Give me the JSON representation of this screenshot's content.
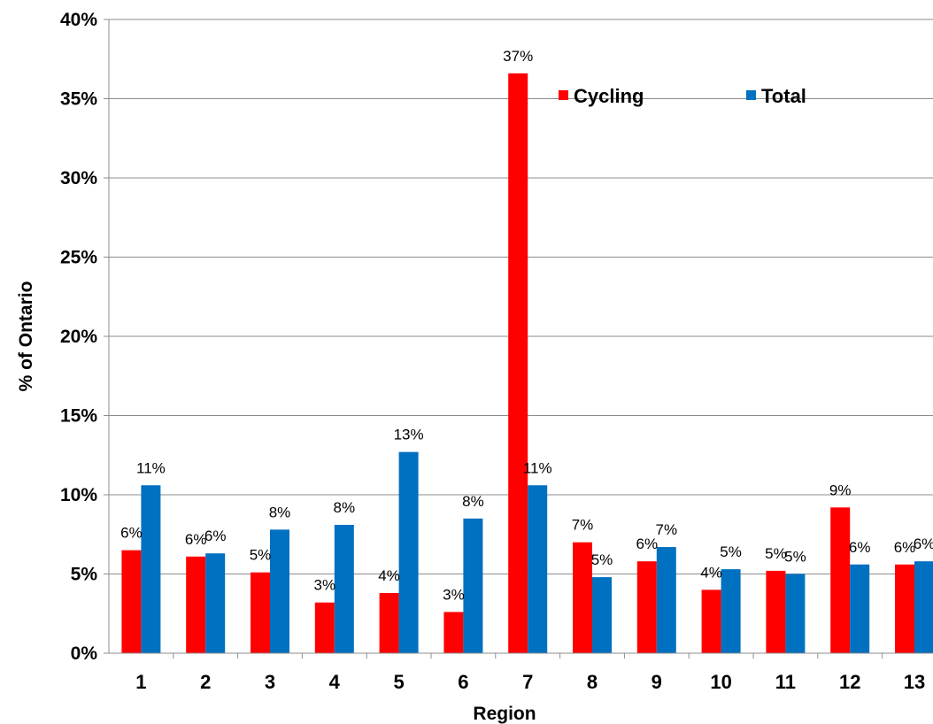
{
  "chart_data": {
    "type": "bar",
    "title": "",
    "xlabel": "Region",
    "ylabel": "% of Ontario",
    "ylim": [
      0,
      40
    ],
    "yticks": [
      0,
      5,
      10,
      15,
      20,
      25,
      30,
      35,
      40
    ],
    "ytick_labels": [
      "0%",
      "5%",
      "10%",
      "15%",
      "20%",
      "25%",
      "30%",
      "35%",
      "40%"
    ],
    "grid": true,
    "legend_position": "top-right",
    "categories": [
      "1",
      "2",
      "3",
      "4",
      "5",
      "6",
      "7",
      "8",
      "9",
      "10",
      "11",
      "12",
      "13"
    ],
    "series": [
      {
        "name": "Cycling",
        "color": "#ff0000",
        "values": [
          6.5,
          6.1,
          5.1,
          3.2,
          3.8,
          2.6,
          36.6,
          7.0,
          5.8,
          4.0,
          5.2,
          9.2,
          5.6
        ],
        "labels": [
          "6%",
          "6%",
          "5%",
          "3%",
          "4%",
          "3%",
          "37%",
          "7%",
          "6%",
          "4%",
          "5%",
          "9%",
          "6%"
        ]
      },
      {
        "name": "Total",
        "color": "#0070c0",
        "values": [
          10.6,
          6.3,
          7.8,
          8.1,
          12.7,
          8.5,
          10.6,
          4.8,
          6.7,
          5.3,
          5.0,
          5.6,
          5.8
        ],
        "labels": [
          "11%",
          "6%",
          "8%",
          "8%",
          "13%",
          "8%",
          "11%",
          "5%",
          "7%",
          "5%",
          "5%",
          "6%",
          "6%"
        ]
      }
    ]
  }
}
